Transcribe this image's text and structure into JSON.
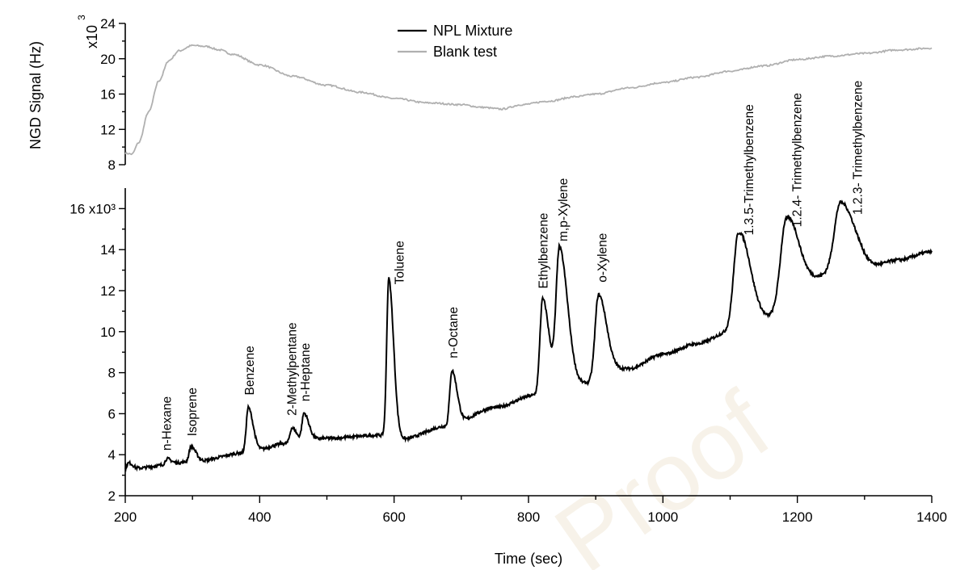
{
  "chart_data": [
    {
      "type": "line",
      "panel": "top",
      "ylabel": "NGD Signal (Hz)",
      "y_multiplier_base": "x10",
      "y_multiplier_exp": "3",
      "ylim": [
        8,
        24
      ],
      "yticks": [
        8,
        12,
        16,
        20,
        24
      ],
      "series": [
        {
          "name": "Blank test",
          "color": "#b0b0b0",
          "points": [
            [
              200,
              9.3
            ],
            [
              210,
              9.2
            ],
            [
              220,
              10.5
            ],
            [
              235,
              14.0
            ],
            [
              250,
              17.5
            ],
            [
              265,
              19.8
            ],
            [
              280,
              20.9
            ],
            [
              300,
              21.5
            ],
            [
              320,
              21.4
            ],
            [
              340,
              21.0
            ],
            [
              360,
              20.5
            ],
            [
              400,
              19.3
            ],
            [
              450,
              18.0
            ],
            [
              500,
              17.0
            ],
            [
              550,
              16.2
            ],
            [
              600,
              15.5
            ],
            [
              650,
              15.0
            ],
            [
              700,
              14.8
            ],
            [
              730,
              14.5
            ],
            [
              760,
              14.3
            ],
            [
              790,
              14.8
            ],
            [
              830,
              15.2
            ],
            [
              870,
              15.7
            ],
            [
              900,
              16.0
            ],
            [
              950,
              16.7
            ],
            [
              1000,
              17.3
            ],
            [
              1050,
              17.9
            ],
            [
              1100,
              18.6
            ],
            [
              1150,
              19.2
            ],
            [
              1200,
              19.9
            ],
            [
              1250,
              20.3
            ],
            [
              1300,
              20.6
            ],
            [
              1350,
              21.0
            ],
            [
              1400,
              21.2
            ]
          ]
        }
      ]
    },
    {
      "type": "line",
      "panel": "bottom",
      "xlabel": "Time (sec)",
      "xlim": [
        200,
        1400
      ],
      "xticks": [
        200,
        400,
        600,
        800,
        1000,
        1200,
        1400
      ],
      "ylim": [
        2,
        17
      ],
      "yticks": [
        2,
        4,
        6,
        8,
        10,
        12,
        14,
        16
      ],
      "ytick_labels": [
        "2",
        "4",
        "6",
        "8",
        "10",
        "12",
        "14",
        "16 x10³"
      ],
      "series": [
        {
          "name": "NPL Mixture",
          "color": "#000000",
          "baseline": [
            [
              200,
              3.3
            ],
            [
              300,
              3.65
            ],
            [
              380,
              4.1
            ],
            [
              440,
              4.55
            ],
            [
              500,
              4.8
            ],
            [
              580,
              4.95
            ],
            [
              610,
              4.75
            ],
            [
              680,
              5.4
            ],
            [
              750,
              6.3
            ],
            [
              810,
              6.9
            ],
            [
              870,
              7.4
            ],
            [
              950,
              8.2
            ],
            [
              1000,
              8.9
            ],
            [
              1050,
              9.4
            ],
            [
              1100,
              10.0
            ],
            [
              1130,
              10.6
            ],
            [
              1150,
              10.6
            ],
            [
              1200,
              12.0
            ],
            [
              1250,
              12.8
            ],
            [
              1300,
              13.0
            ],
            [
              1350,
              13.5
            ],
            [
              1400,
              13.9
            ]
          ],
          "peaks": [
            {
              "t": 205,
              "h": 3.6,
              "w": 2.5
            },
            {
              "t": 262,
              "h": 3.8,
              "w": 2.5
            },
            {
              "t": 298,
              "h": 4.4,
              "w": 3
            },
            {
              "t": 383,
              "h": 6.3,
              "w": 3
            },
            {
              "t": 448,
              "h": 5.3,
              "w": 3
            },
            {
              "t": 466,
              "h": 6.0,
              "w": 3
            },
            {
              "t": 592,
              "h": 12.6,
              "w": 3
            },
            {
              "t": 686,
              "h": 8.1,
              "w": 3.2
            },
            {
              "t": 821,
              "h": 11.6,
              "w": 4
            },
            {
              "t": 846,
              "h": 14.0,
              "w": 5
            },
            {
              "t": 904,
              "h": 11.8,
              "w": 5
            },
            {
              "t": 1112,
              "h": 14.8,
              "w": 7
            },
            {
              "t": 1183,
              "h": 15.5,
              "w": 8
            },
            {
              "t": 1264,
              "h": 16.3,
              "w": 9
            }
          ]
        }
      ],
      "annotations": [
        {
          "text": "n-Hexane",
          "x": 262,
          "y": 4.2
        },
        {
          "text": "Isoprene",
          "x": 300,
          "y": 4.9
        },
        {
          "text": "Benzene",
          "x": 385,
          "y": 6.9
        },
        {
          "text": "2-Methylpentane",
          "x": 448,
          "y": 5.9
        },
        {
          "text": "n-Heptane",
          "x": 468,
          "y": 6.6
        },
        {
          "text": "Toluene",
          "x": 608,
          "y": 12.3
        },
        {
          "text": "n-Octane",
          "x": 688,
          "y": 8.7
        },
        {
          "text": "Ethylbenzene",
          "x": 822,
          "y": 12.1
        },
        {
          "text": "m,p-Xylene",
          "x": 852,
          "y": 14.4
        },
        {
          "text": "o-Xylene",
          "x": 910,
          "y": 12.4
        },
        {
          "text": "1.3.5-Trimethylbenzene",
          "x": 1128,
          "y": 14.7
        },
        {
          "text": "1.2.4- Trimethylbenzene",
          "x": 1200,
          "y": 15.1
        },
        {
          "text": "1.2.3- Trimethylbenzene",
          "x": 1290,
          "y": 15.7
        }
      ]
    }
  ],
  "legend": {
    "placement": "top-center",
    "items": [
      {
        "label": "NPL Mixture",
        "color": "#000000"
      },
      {
        "label": "Blank test",
        "color": "#b0b0b0"
      }
    ]
  },
  "watermark_text": "Proof"
}
